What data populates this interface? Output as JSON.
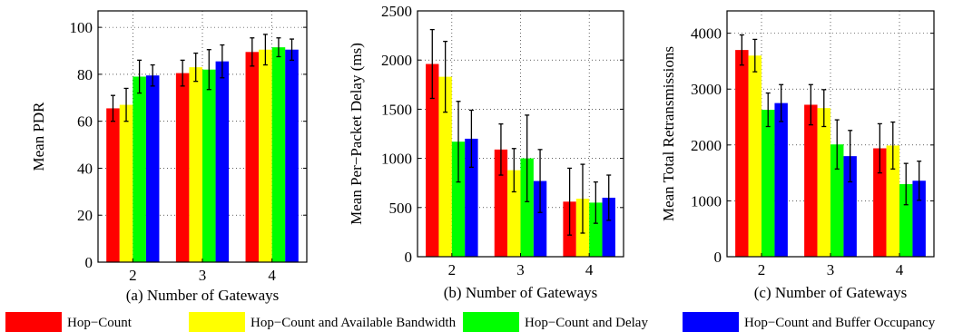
{
  "colors": {
    "Hop-Count": "#ff0000",
    "Hop-Count and Available Bandwidth": "#ffff00",
    "Hop-Count and Delay": "#00ff00",
    "Hop-Count and Buffer Occupancy": "#0000ff"
  },
  "legend": {
    "placement": "bottom",
    "entries": [
      "Hop−Count",
      "Hop−Count and Available Bandwidth",
      "Hop−Count and Delay",
      "Hop−Count and Buffer Occupancy"
    ]
  },
  "chart_data": [
    {
      "type": "bar",
      "title": "",
      "xlabel": "(a) Number of Gateways",
      "ylabel": "Mean PDR",
      "categories": [
        "2",
        "3",
        "4"
      ],
      "ylim": [
        0,
        107
      ],
      "yticks": [
        0,
        20,
        40,
        60,
        80,
        100
      ],
      "grid": true,
      "series": [
        {
          "name": "Hop−Count",
          "values": [
            65.5,
            80.5,
            89.5
          ],
          "err": [
            5.5,
            5.5,
            6
          ]
        },
        {
          "name": "Hop−Count and Available Bandwidth",
          "values": [
            67,
            83,
            90.5
          ],
          "err": [
            7,
            6,
            6.5
          ]
        },
        {
          "name": "Hop−Count and Delay",
          "values": [
            79,
            82,
            91.5
          ],
          "err": [
            7,
            8.5,
            4
          ]
        },
        {
          "name": "Hop−Count and Buffer Occupancy",
          "values": [
            79.5,
            85.5,
            90.5
          ],
          "err": [
            4.5,
            7,
            4.5
          ]
        }
      ]
    },
    {
      "type": "bar",
      "title": "",
      "xlabel": "(b) Number of Gateways",
      "ylabel": "Mean Per−Packet Delay (ms)",
      "categories": [
        "2",
        "3",
        "4"
      ],
      "ylim": [
        0,
        2500
      ],
      "yticks": [
        0,
        500,
        1000,
        1500,
        2000,
        2500
      ],
      "grid": true,
      "series": [
        {
          "name": "Hop−Count",
          "values": [
            1960,
            1090,
            560
          ],
          "err": [
            350,
            260,
            340
          ]
        },
        {
          "name": "Hop−Count and Available Bandwidth",
          "values": [
            1830,
            880,
            590
          ],
          "err": [
            360,
            220,
            350
          ]
        },
        {
          "name": "Hop−Count and Delay",
          "values": [
            1170,
            1000,
            550
          ],
          "err": [
            410,
            440,
            210
          ]
        },
        {
          "name": "Hop−Count and Buffer Occupancy",
          "values": [
            1200,
            770,
            600
          ],
          "err": [
            290,
            320,
            230
          ]
        }
      ]
    },
    {
      "type": "bar",
      "title": "",
      "xlabel": "(c) Number of Gateways",
      "ylabel": "Mean Total Retransmissions",
      "categories": [
        "2",
        "3",
        "4"
      ],
      "ylim": [
        0,
        4400
      ],
      "yticks": [
        0,
        1000,
        2000,
        3000,
        4000
      ],
      "grid": true,
      "series": [
        {
          "name": "Hop−Count",
          "values": [
            3700,
            2720,
            1940
          ],
          "err": [
            270,
            360,
            440
          ]
        },
        {
          "name": "Hop−Count and Available Bandwidth",
          "values": [
            3600,
            2660,
            1990
          ],
          "err": [
            290,
            330,
            420
          ]
        },
        {
          "name": "Hop−Count and Delay",
          "values": [
            2630,
            2010,
            1300
          ],
          "err": [
            300,
            440,
            370
          ]
        },
        {
          "name": "Hop−Count and Buffer Occupancy",
          "values": [
            2750,
            1800,
            1360
          ],
          "err": [
            330,
            460,
            350
          ]
        }
      ]
    }
  ]
}
